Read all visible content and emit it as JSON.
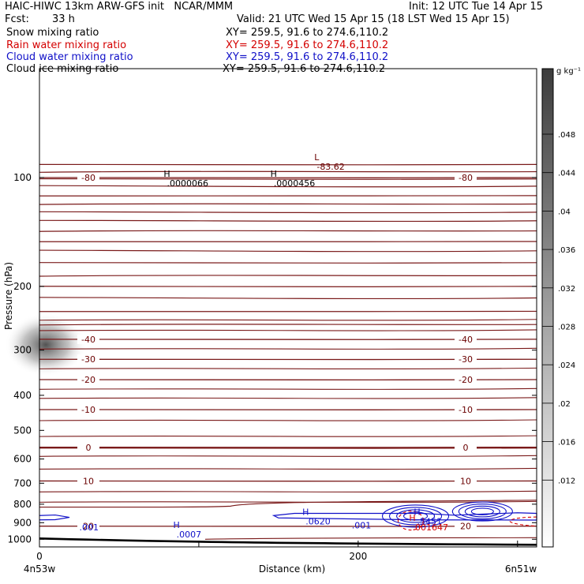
{
  "header": {
    "title_left": "HAIC-HIWC 13km ARW-GFS init   NCAR/MMM",
    "init": "Init: 12 UTC Tue 14 Apr 15",
    "fcst_label": "Fcst:",
    "fcst_value": "33 h",
    "valid": "Valid: 21 UTC Wed 15 Apr 15 (18 LST Wed 15 Apr 15)"
  },
  "fields": [
    {
      "name": "Snow mixing ratio",
      "xy": "XY= 259.5, 91.6 to 274.6,110.2",
      "color": "#000000"
    },
    {
      "name": "Rain water mixing ratio",
      "xy": "XY= 259.5, 91.6 to 274.6,110.2",
      "color": "#d40000"
    },
    {
      "name": "Cloud water mixing ratio",
      "xy": "XY= 259.5, 91.6 to 274.6,110.2",
      "color": "#1010c8"
    },
    {
      "name": "Cloud ice mixing ratio",
      "xy": "XY= 259.5, 91.6 to 274.6,110.2",
      "color": "#000000"
    }
  ],
  "colorbar": {
    "unit": "g kg⁻¹",
    "labels": [
      ".048",
      ".044",
      ".04",
      ".036",
      ".032",
      ".028",
      ".024",
      ".02",
      ".016",
      ".012"
    ]
  },
  "chart_data": {
    "type": "contour",
    "xlabel": "Distance (km)",
    "ylabel": "Pressure (hPa)",
    "xlim": [
      0,
      312
    ],
    "ylim": [
      1050,
      50
    ],
    "y_scale": "log",
    "x_ticks": [
      0,
      100,
      200,
      300
    ],
    "x_tick_labels": [
      "0",
      "",
      "200",
      ""
    ],
    "y_ticks": [
      100,
      200,
      300,
      400,
      500,
      600,
      700,
      800,
      900,
      1000
    ],
    "y_tick_labels": [
      "100",
      "200",
      "300",
      "400",
      "500",
      "600",
      "700",
      "800",
      "900",
      "1000"
    ],
    "endpoints": {
      "left": "4n53w",
      "right": "6n51w"
    },
    "temperature_contours_C": [
      {
        "level": -80,
        "pressure_hPa": 100,
        "label": "-80"
      },
      {
        "level": -40,
        "pressure_hPa": 280,
        "label": "-40"
      },
      {
        "level": -30,
        "pressure_hPa": 318,
        "label": "-30"
      },
      {
        "level": -20,
        "pressure_hPa": 362,
        "label": "-20"
      },
      {
        "level": -10,
        "pressure_hPa": 438,
        "label": "-10"
      },
      {
        "level": 0,
        "pressure_hPa": 558,
        "label": "0"
      },
      {
        "level": 10,
        "pressure_hPa": 690,
        "label": "10"
      },
      {
        "level": 20,
        "pressure_hPa": 920,
        "label": "20"
      }
    ],
    "temperature_label_near_top": "-80",
    "annotations": [
      {
        "kind": "H",
        "value": ".0000066",
        "x_km": 80,
        "pressure_hPa": 100,
        "color": "#000000"
      },
      {
        "kind": "H",
        "value": ".0000456",
        "x_km": 147,
        "pressure_hPa": 100,
        "color": "#000000"
      },
      {
        "kind": "L",
        "value": "-83.62",
        "x_km": 174,
        "pressure_hPa": 90,
        "color": "#6a0000"
      },
      {
        "kind": "H",
        "value": ".0620",
        "x_km": 167,
        "pressure_hPa": 860,
        "color": "#1010c8"
      },
      {
        "kind": "H",
        "value": ".0007",
        "x_km": 86,
        "pressure_hPa": 935,
        "color": "#1010c8"
      },
      {
        "kind": "",
        "value": ".001",
        "x_km": 25,
        "pressure_hPa": 895,
        "color": "#1010c8"
      },
      {
        "kind": "",
        "value": ".001",
        "x_km": 196,
        "pressure_hPa": 884,
        "color": "#1010c8"
      },
      {
        "kind": "H",
        "value": ".5451",
        "x_km": 237,
        "pressure_hPa": 860,
        "color": "#1010c8"
      },
      {
        "kind": "H",
        "value": ".001647",
        "x_km": 234,
        "pressure_hPa": 895,
        "color": "#d40000"
      }
    ],
    "snow_maximum": {
      "x_km": 0,
      "pressure_hPa": 290
    }
  }
}
